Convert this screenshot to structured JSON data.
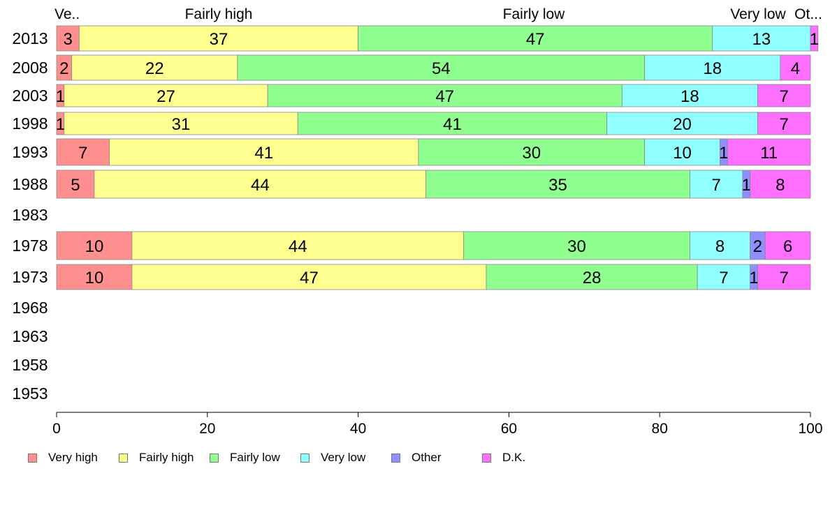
{
  "chart_data": {
    "type": "bar",
    "orientation": "horizontal",
    "stacked": true,
    "categories": [
      "2013",
      "2008",
      "2003",
      "1998",
      "1993",
      "1988",
      "1983",
      "1978",
      "1973",
      "1968",
      "1963",
      "1958",
      "1953"
    ],
    "series": [
      {
        "name": "Very high",
        "color": "#ff8f8f",
        "values": [
          3,
          2,
          1,
          1,
          7,
          5,
          null,
          10,
          10,
          null,
          null,
          null,
          null
        ]
      },
      {
        "name": "Fairly high",
        "color": "#ffff8f",
        "values": [
          37,
          22,
          27,
          31,
          41,
          44,
          null,
          44,
          47,
          null,
          null,
          null,
          null
        ]
      },
      {
        "name": "Fairly low",
        "color": "#8fff8f",
        "values": [
          47,
          54,
          47,
          41,
          30,
          35,
          null,
          30,
          28,
          null,
          null,
          null,
          null
        ]
      },
      {
        "name": "Very low",
        "color": "#8fffff",
        "values": [
          13,
          18,
          18,
          20,
          10,
          7,
          null,
          8,
          7,
          null,
          null,
          null,
          null
        ]
      },
      {
        "name": "Other",
        "color": "#8f8fff",
        "values": [
          0,
          0,
          0,
          0,
          1,
          1,
          null,
          2,
          1,
          null,
          null,
          null,
          null
        ]
      },
      {
        "name": "D.K.",
        "color": "#ff6fff",
        "values": [
          1,
          4,
          7,
          7,
          11,
          8,
          null,
          6,
          7,
          null,
          null,
          null,
          null
        ]
      }
    ],
    "top_labels": [
      "Ve..",
      "Fairly high",
      "Fairly low",
      "Very low",
      "Ot..."
    ],
    "xlim": [
      0,
      100
    ],
    "xticks": [
      "0",
      "20",
      "40",
      "60",
      "80",
      "100"
    ],
    "grid": false,
    "legend_position": "bottom"
  }
}
